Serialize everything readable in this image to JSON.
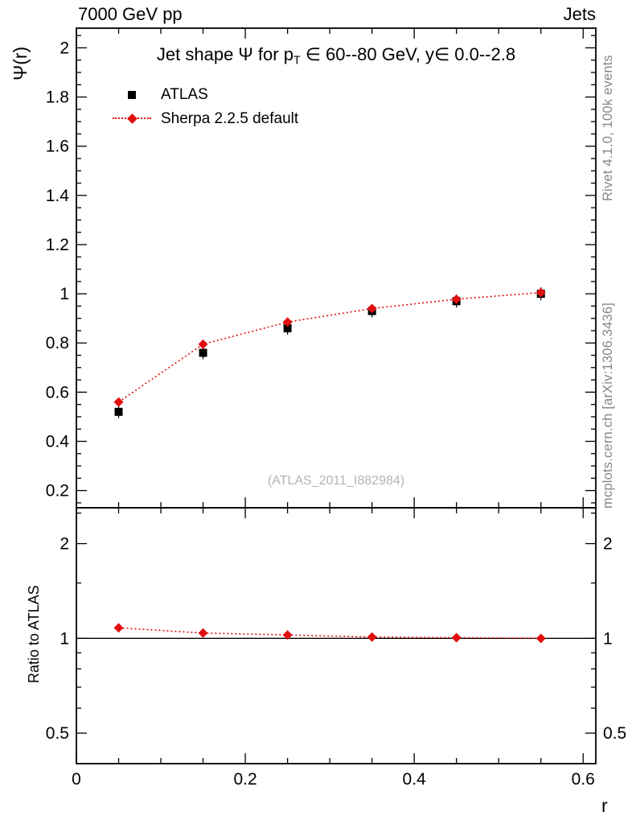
{
  "header": {
    "left": "7000 GeV pp",
    "right": "Jets"
  },
  "title": {
    "pre": "Jet shape Ψ for p",
    "sub": "T",
    "post": " ∈ 60--80 GeV, y∈ 0.0--2.8"
  },
  "legend": {
    "items": [
      {
        "label": "ATLAS",
        "marker": "black-square"
      },
      {
        "label": "Sherpa 2.2.5 default",
        "marker": "red-diamond-dotted-line"
      }
    ]
  },
  "watermark": "(ATLAS_2011_I882984)",
  "axes": {
    "y_main": "Ψ(r)",
    "y_ratio": "Ratio to ATLAS",
    "x": "r"
  },
  "captions": {
    "right_top": "Rivet 4.1.0, 100k events",
    "right_bottom": "mcplots.cern.ch [arXiv:1306.3436]"
  },
  "colors": {
    "accent": "#e10e0e",
    "frame": "#000000",
    "caption_gray": "#878787",
    "watermark_gray": "#b3b3b3"
  },
  "chart_data": [
    {
      "type": "scatter",
      "panel": "main",
      "title": "Jet shape Ψ for p_T ∈ 60--80 GeV, y∈ 0.0--2.8",
      "xlabel": "r",
      "ylabel": "Ψ(r)",
      "yscale": "linear",
      "xlim": [
        0,
        0.615
      ],
      "ylim": [
        0.13,
        2.08
      ],
      "xticks": [
        0,
        0.2,
        0.4,
        0.6
      ],
      "yticks": [
        0.2,
        0.4,
        0.6,
        0.8,
        1,
        1.2,
        1.4,
        1.6,
        1.8,
        2
      ],
      "grid": false,
      "legend_position": "top-left",
      "x": [
        0.05,
        0.15,
        0.25,
        0.35,
        0.45,
        0.55
      ],
      "series": [
        {
          "name": "ATLAS",
          "marker": "square",
          "color": "#000000",
          "line": "none",
          "values": [
            0.52,
            0.76,
            0.86,
            0.93,
            0.97,
            1.0
          ]
        },
        {
          "name": "Sherpa 2.2.5 default",
          "marker": "diamond",
          "color": "#e10e0e",
          "line": "dotted",
          "values": [
            0.56,
            0.795,
            0.885,
            0.94,
            0.978,
            1.005
          ]
        }
      ]
    },
    {
      "type": "scatter",
      "panel": "ratio",
      "ylabel": "Ratio to ATLAS",
      "yscale": "log",
      "xlim": [
        0,
        0.615
      ],
      "ylim": [
        0.4,
        2.6
      ],
      "xticks": [
        0,
        0.2,
        0.4,
        0.6
      ],
      "yticks": [
        0.5,
        1,
        2
      ],
      "refline_y": 1,
      "x": [
        0.05,
        0.15,
        0.25,
        0.35,
        0.45,
        0.55
      ],
      "series": [
        {
          "name": "Sherpa 2.2.5 default / ATLAS",
          "marker": "diamond",
          "color": "#e10e0e",
          "line": "dotted",
          "values": [
            1.08,
            1.04,
            1.025,
            1.01,
            1.005,
            1.0
          ]
        }
      ]
    }
  ]
}
